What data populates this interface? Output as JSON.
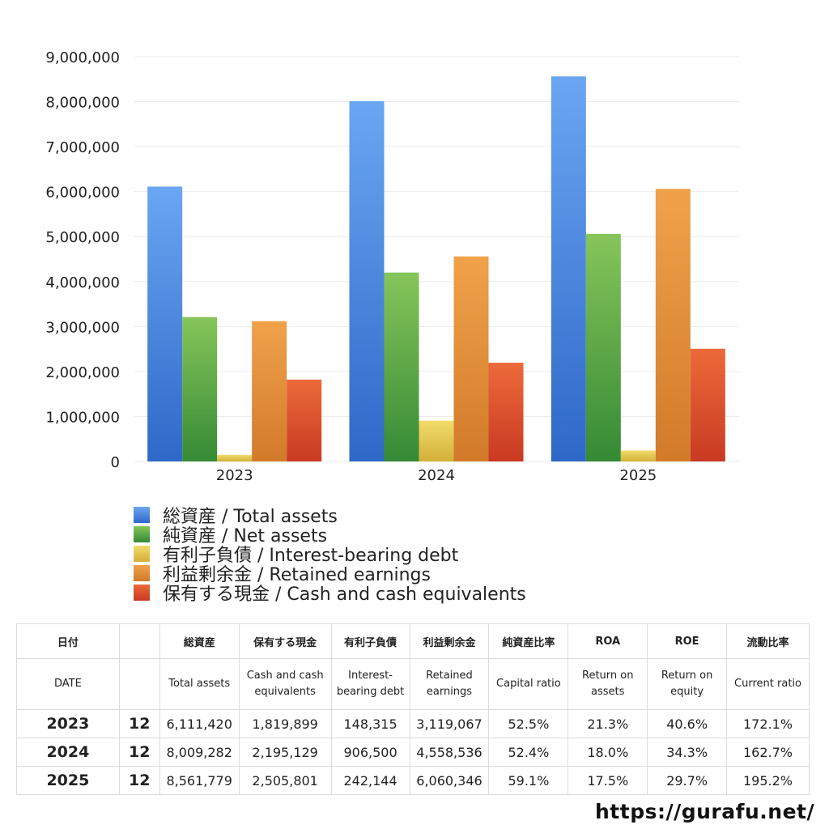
{
  "chart_data": {
    "type": "bar",
    "categories": [
      "2023",
      "2024",
      "2025"
    ],
    "series": [
      {
        "name": "総資産 / Total assets",
        "values": [
          6111420,
          8009282,
          8561779
        ],
        "color": "#3f7ee0"
      },
      {
        "name": "純資産 / Net assets",
        "values": [
          3210000,
          4200000,
          5060000
        ],
        "color": "#4aa34a"
      },
      {
        "name": "有利子負債 / Interest-bearing debt",
        "values": [
          148315,
          906500,
          242144
        ],
        "color": "#e6c840"
      },
      {
        "name": "利益剰余金 / Retained earnings",
        "values": [
          3119067,
          4558536,
          6060346
        ],
        "color": "#e08a35"
      },
      {
        "name": "保有する現金 /  Cash and cash equivalents",
        "values": [
          1819899,
          2195129,
          2505801
        ],
        "color": "#dd4a2a"
      }
    ],
    "ylim": [
      0,
      9000000
    ],
    "yticks": [
      "0",
      "1,000,000",
      "2,000,000",
      "3,000,000",
      "4,000,000",
      "5,000,000",
      "6,000,000",
      "7,000,000",
      "8,000,000",
      "9,000,000"
    ],
    "grid": true,
    "legend_position": "bottom"
  },
  "table": {
    "header_jp": [
      "日付",
      "",
      "総資産",
      "保有する現金",
      "有利子負債",
      "利益剰余金",
      "純資産比率",
      "ROA",
      "ROE",
      "流動比率"
    ],
    "header_en": [
      "DATE",
      "",
      "Total assets",
      "Cash and cash equivalents",
      "Interest-bearing debt",
      "Retained earnings",
      "Capital ratio",
      "Return on assets",
      "Return on equity",
      "Current ratio"
    ],
    "rows": [
      [
        "2023",
        "12",
        "6,111,420",
        "1,819,899",
        "148,315",
        "3,119,067",
        "52.5%",
        "21.3%",
        "40.6%",
        "172.1%"
      ],
      [
        "2024",
        "12",
        "8,009,282",
        "2,195,129",
        "906,500",
        "4,558,536",
        "52.4%",
        "18.0%",
        "34.3%",
        "162.7%"
      ],
      [
        "2025",
        "12",
        "8,561,779",
        "2,505,801",
        "242,144",
        "6,060,346",
        "59.1%",
        "17.5%",
        "29.7%",
        "195.2%"
      ]
    ]
  },
  "footer": {
    "url": "https://gurafu.net/"
  }
}
